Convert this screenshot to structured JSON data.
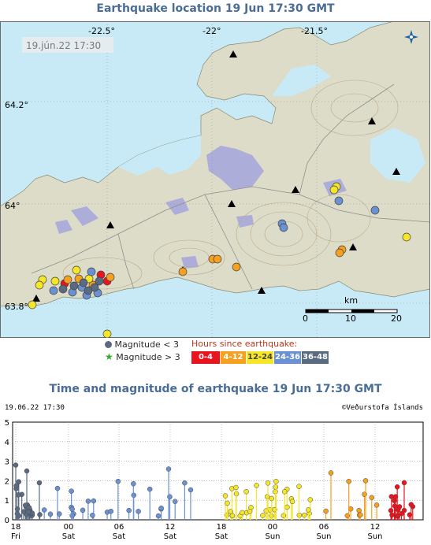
{
  "map": {
    "title": "Earthquake location   19 Jun 17:30 GMT",
    "timestamp": "19.jún.22  17:30",
    "lon_labels": [
      "-22.5°",
      "-22°",
      "-21.5°"
    ],
    "lat_labels": [
      "64.2°",
      "64°",
      "63.8°"
    ],
    "scale_unit": "km",
    "scale_ticks": [
      "0",
      "10",
      "20"
    ],
    "logo": "vedurstofa-logo-icon",
    "colors": {
      "sea": "#c8eaf7",
      "land": "#dcdcc8",
      "lake": "#a4a4dc",
      "contour": "#bfa985",
      "road": "#999999"
    }
  },
  "legend": {
    "mag_small_label": "Magnitude < 3",
    "mag_large_label": "Magnitude > 3",
    "hours_title": "Hours since earthquake:",
    "hours_bins": [
      {
        "label": "0-4",
        "color": "#e8141e"
      },
      {
        "label": "4-12",
        "color": "#f5a01e"
      },
      {
        "label": "12-24",
        "color": "#f5e628"
      },
      {
        "label": "24-36",
        "color": "#6a92d2"
      },
      {
        "label": "36-48",
        "color": "#5a6a82"
      }
    ]
  },
  "timeplot": {
    "title": "Time and magnitude of earthquake   19 Jun 17:30 GMT",
    "left_stamp": "19.06.22 17:30",
    "right_stamp": "©Veðurstofa Íslands",
    "y_ticks": [
      "0",
      "1",
      "2",
      "3",
      "4",
      "5"
    ],
    "x_ticks": [
      {
        "hour": "18",
        "day": "Fri"
      },
      {
        "hour": "00",
        "day": "Sat"
      },
      {
        "hour": "06",
        "day": "Sat"
      },
      {
        "hour": "12",
        "day": "Sat"
      },
      {
        "hour": "18",
        "day": "Sat"
      },
      {
        "hour": "00",
        "day": "Sun"
      },
      {
        "hour": "06",
        "day": "Sun"
      },
      {
        "hour": "12",
        "day": "Sun"
      }
    ]
  }
}
